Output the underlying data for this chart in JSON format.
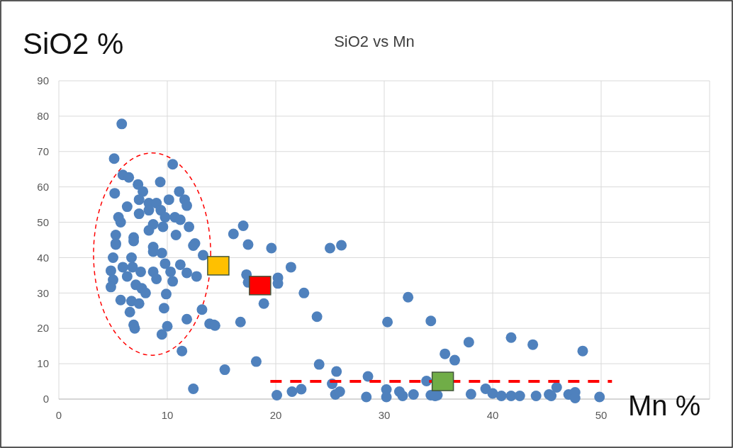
{
  "chart_data": {
    "type": "scatter",
    "title": "SiO2 vs Mn",
    "xlabel": "Mn %",
    "ylabel": "SiO2 %",
    "xlim": [
      0,
      60
    ],
    "xticks": [
      0,
      10,
      20,
      30,
      40,
      50,
      {
        "value": 60,
        "label": null
      }
    ],
    "ylim": [
      0,
      90
    ],
    "yticks": [
      0,
      10,
      20,
      30,
      40,
      50,
      60,
      70,
      80,
      90
    ],
    "grid": true,
    "series": [
      {
        "marker": "circle",
        "color": "#4f81bd",
        "x": [
          5.8,
          5.1,
          10.5,
          9.35,
          5.9,
          6.45,
          7.3,
          7.75,
          5.15,
          11.1,
          6.3,
          7.4,
          8.3,
          9.0,
          10.15,
          11.6,
          11.8,
          5.5,
          5.7,
          7.4,
          8.3,
          9.4,
          9.8,
          10.7,
          11.2,
          8.7,
          9.6,
          8.3,
          12.0,
          5.25,
          6.9,
          10.8,
          12.55,
          5.25,
          8.7,
          5.25,
          6.9,
          8.7,
          9.5,
          5.0,
          6.7,
          12.4,
          13.3,
          9.8,
          11.2,
          4.8,
          5.9,
          6.8,
          7.55,
          8.7,
          10.3,
          11.8,
          12.7,
          5.0,
          6.3,
          9.0,
          10.5,
          4.8,
          7.1,
          7.65,
          8.0,
          9.9,
          5.7,
          6.7,
          7.4,
          9.7,
          6.55,
          13.2,
          11.8,
          6.9,
          7.0,
          10.0,
          9.5,
          13.9,
          14.3,
          11.35,
          15.3,
          12.4,
          16.1,
          17.0,
          17.45,
          19.6,
          25.0,
          26.05,
          21.4,
          17.3,
          17.45,
          20.2,
          20.2,
          22.6,
          18.9,
          23.8,
          32.2,
          30.3,
          34.3,
          16.75,
          14.4,
          18.2,
          24.0,
          25.6,
          28.5,
          25.2,
          20.1,
          21.5,
          22.35,
          25.5,
          25.9,
          28.35,
          30.2,
          30.2,
          31.4,
          31.7,
          32.7,
          35.6,
          33.9,
          34.3,
          34.9,
          36.5,
          37.8,
          41.7,
          43.7,
          48.3,
          34.7,
          38.0,
          39.35,
          40.0,
          40.8,
          41.7,
          42.5,
          44.0,
          45.2,
          45.9,
          45.4,
          47.0,
          47.6,
          47.6,
          49.85
        ],
        "values": [
          77.8,
          68,
          66.4,
          61.4,
          63.4,
          62.7,
          60.7,
          58.7,
          58.2,
          58.7,
          54.4,
          56.4,
          55.4,
          55.4,
          56.4,
          56.4,
          54.7,
          51.4,
          50.0,
          52.4,
          53.4,
          53.4,
          51.4,
          51.4,
          50.7,
          49.4,
          48.7,
          47.7,
          48.7,
          46.4,
          45.7,
          46.4,
          44.0,
          44.0,
          43.0,
          43.7,
          44.7,
          41.7,
          41.3,
          40.0,
          40.0,
          43.4,
          40.7,
          38.3,
          38.0,
          36.3,
          37.3,
          37.3,
          36.0,
          36.0,
          36.0,
          35.7,
          34.7,
          33.7,
          34.7,
          34.0,
          33.3,
          31.7,
          32.3,
          31.3,
          30.0,
          29.7,
          28.0,
          27.7,
          27.0,
          25.7,
          24.6,
          25.3,
          22.6,
          21.0,
          20.0,
          20.6,
          18.3,
          21.3,
          21.0,
          13.6,
          8.3,
          2.9,
          46.7,
          49.0,
          43.7,
          42.7,
          42.7,
          43.5,
          37.3,
          35.2,
          33.0,
          34.3,
          32.7,
          30.0,
          27.0,
          23.3,
          28.8,
          21.8,
          22.1,
          21.8,
          20.8,
          10.6,
          9.8,
          7.8,
          6.4,
          4.3,
          1.1,
          2.1,
          2.8,
          1.3,
          2.1,
          0.6,
          2.7,
          0.6,
          2.1,
          0.9,
          1.3,
          12.8,
          5.1,
          1.1,
          1.1,
          11.0,
          16.1,
          17.4,
          15.4,
          13.6,
          0.9,
          1.4,
          2.9,
          1.6,
          0.9,
          0.9,
          0.9,
          0.9,
          1.3,
          3.3,
          0.9,
          1.3,
          1.9,
          0.3,
          0.6
        ]
      },
      {
        "type": "line",
        "marker": "none",
        "line_style": "dashed",
        "color": "#ff0000",
        "x": [
          19.5,
          51
        ],
        "values": [
          5,
          5
        ]
      },
      {
        "marker": "square",
        "color": "#ffc000",
        "x": [
          14.7
        ],
        "values": [
          37.7
        ]
      },
      {
        "marker": "square",
        "color": "#ff0000",
        "x": [
          18.55
        ],
        "values": [
          32.1
        ]
      },
      {
        "marker": "square",
        "color": "#70ad47",
        "x": [
          35.4
        ],
        "values": [
          5.0
        ]
      }
    ]
  }
}
